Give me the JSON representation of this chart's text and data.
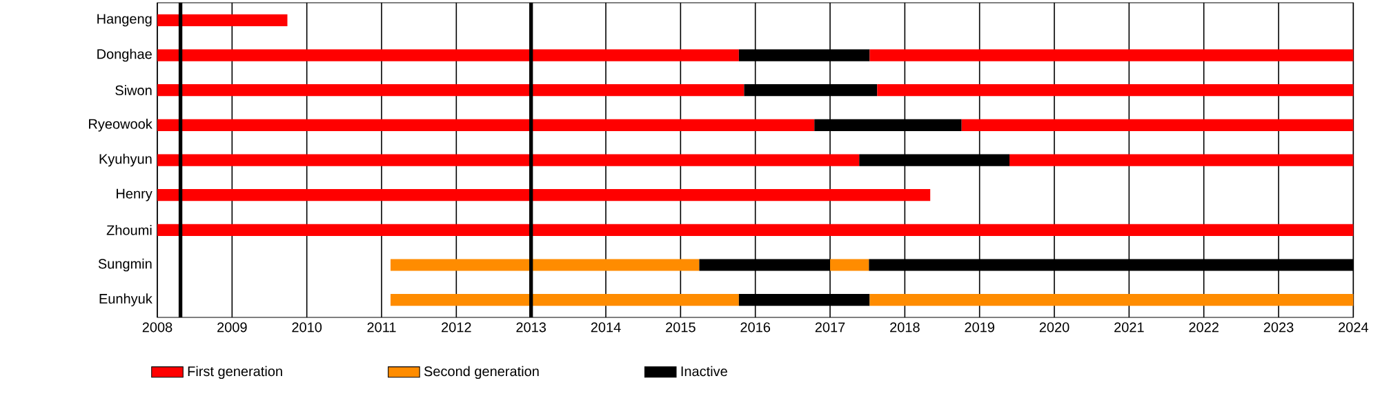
{
  "chart_data": {
    "type": "bar",
    "orientation": "horizontal",
    "categories": [
      "Hangeng",
      "Donghae",
      "Siwon",
      "Ryeowook",
      "Kyuhyun",
      "Henry",
      "Zhoumi",
      "Sungmin",
      "Eunhyuk"
    ],
    "series": [
      {
        "name": "First generation",
        "color": "#ff0000",
        "base": [
          2008,
          2008,
          2008,
          2008,
          2008,
          2008,
          2008,
          null,
          null
        ],
        "values": [
          1.74,
          7.78,
          7.85,
          8.79,
          9.39,
          10.34,
          16,
          null,
          null
        ]
      },
      {
        "name": "Second generation",
        "color": "#ff8c00",
        "base": [
          null,
          null,
          null,
          null,
          null,
          null,
          null,
          2011.12,
          2011.12
        ],
        "values": [
          null,
          null,
          null,
          null,
          null,
          null,
          null,
          4.13,
          4.66
        ]
      },
      {
        "name": "Inactive",
        "color": "#000000",
        "base": [
          null,
          2015.78,
          2015.85,
          2016.79,
          2017.39,
          null,
          null,
          2015.25,
          2015.78
        ],
        "values": [
          null,
          1.75,
          1.78,
          1.97,
          2.01,
          null,
          null,
          1.75,
          1.75
        ]
      },
      {
        "color": "#ff0000",
        "base": [
          null,
          2017.53,
          2017.63,
          2018.76,
          2019.4,
          null,
          null,
          null,
          null
        ],
        "values": [
          null,
          6.47,
          6.37,
          5.24,
          4.6,
          null,
          null,
          null,
          null
        ]
      },
      {
        "color": "#ff8c00",
        "base": [
          null,
          null,
          null,
          null,
          null,
          null,
          null,
          2017.0,
          2017.53
        ],
        "values": [
          null,
          null,
          null,
          null,
          null,
          null,
          null,
          0.52,
          6.47
        ]
      },
      {
        "color": "#000000",
        "base": [
          null,
          null,
          null,
          null,
          null,
          null,
          null,
          2017.52,
          null
        ],
        "values": [
          null,
          null,
          null,
          null,
          null,
          null,
          null,
          6.48,
          null
        ]
      }
    ],
    "xlim": [
      2008,
      2024
    ],
    "xticks": [
      2008,
      2009,
      2010,
      2011,
      2012,
      2013,
      2014,
      2015,
      2016,
      2017,
      2018,
      2019,
      2020,
      2021,
      2022,
      2023,
      2024
    ],
    "ref_lines": [
      {
        "axis": "x",
        "value": 2008.31,
        "color": "#000000"
      },
      {
        "axis": "x",
        "value": 2013.0,
        "color": "#000000"
      }
    ],
    "grid": "x",
    "legend": "bottom left"
  }
}
